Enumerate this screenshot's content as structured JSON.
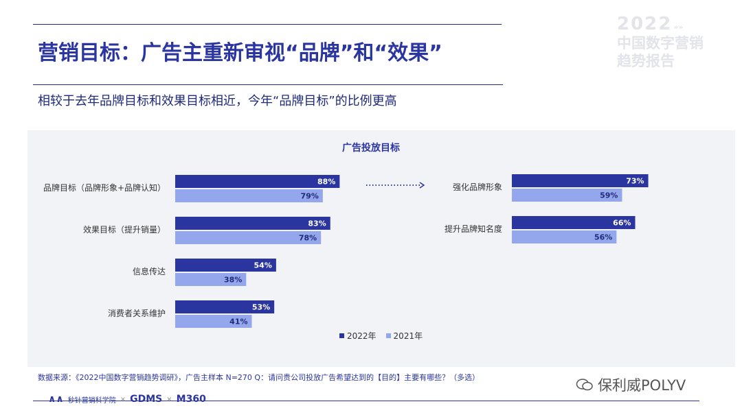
{
  "slide": {
    "title": "营销目标：广告主重新审视“品牌”和“效果”",
    "subtitle": "相较于去年品牌目标和效果目标相近，今年“品牌目标”的比例更高",
    "footnote": "数据来源：《2022中国数字营销趋势调研》，广告主样本 N=270    Q：请问贵公司投放广告希望达到的【目的】主要有哪些？（多选）"
  },
  "badge": {
    "year": "2022",
    "arrows": "»»",
    "line1": "中国数字营销",
    "line2": "趋势报告"
  },
  "colors": {
    "series_2022": "#2a35a0",
    "series_2021": "#94a7ec",
    "accent": "#2a35a0"
  },
  "chart_data": [
    {
      "type": "bar",
      "orientation": "horizontal",
      "title": "广告投放目标",
      "categories": [
        "品牌目标（品牌形象+品牌认知）",
        "效果目标（提升销量）",
        "信息传达",
        "消费者关系维护"
      ],
      "series": [
        {
          "name": "2022年",
          "values": [
            88,
            83,
            54,
            53
          ]
        },
        {
          "name": "2021年",
          "values": [
            79,
            78,
            38,
            41
          ]
        }
      ],
      "value_format": "percent",
      "legend": "bottom"
    },
    {
      "type": "bar",
      "orientation": "horizontal",
      "categories": [
        "强化品牌形象",
        "提升品牌知名度"
      ],
      "series": [
        {
          "name": "2022年",
          "values": [
            73,
            66
          ]
        },
        {
          "name": "2021年",
          "values": [
            59,
            56
          ]
        }
      ],
      "value_format": "percent"
    }
  ],
  "logos": {
    "brand1": "秒针营销科学院",
    "brand2": "GDMS",
    "brand3": "M360",
    "sep": "×"
  },
  "watermark": {
    "text": "保利威POLYV",
    "icon": "wechat-icon"
  }
}
